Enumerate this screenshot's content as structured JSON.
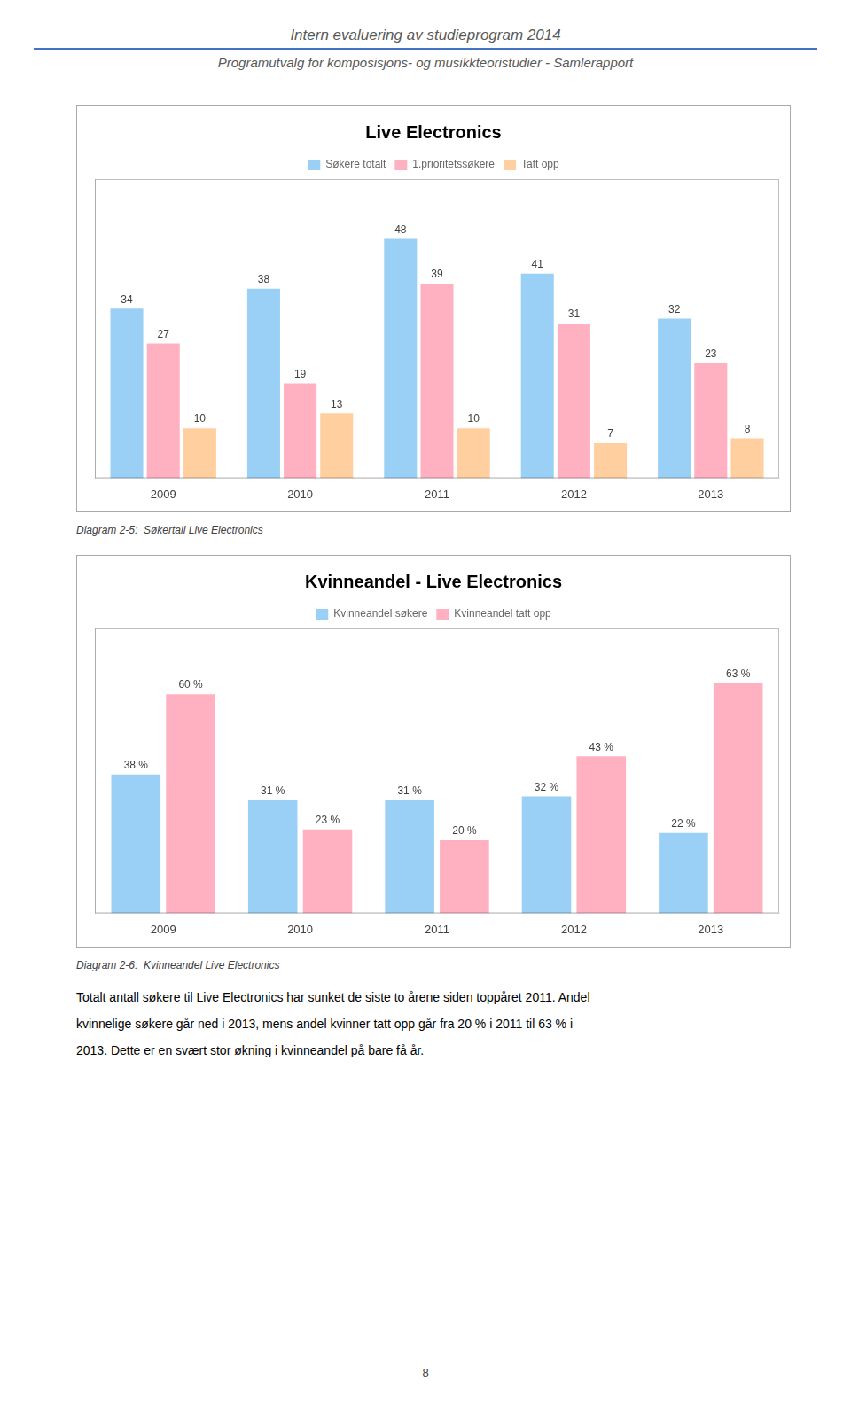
{
  "title": "Intern evaluering av studieprogram 2014",
  "subtitle": "Programutvalg for komposisjons- og musikkteoristudier - Samlerapport",
  "annotations": [
    "Totalt antall søkere til Live Electronics har sunket de siste to årene siden toppåret 2011. Andel",
    "kvinnelige søkere går ned i 2013, mens andel kvinner tatt opp går fra 20 % i 2011 til 63 % i",
    "2013. Dette er en svært stor økning i kvinneandel på bare få år.",
    "8"
  ],
  "chart_data": [
    {
      "type": "bar",
      "title": "Live Electronics",
      "categories": [
        "2009",
        "2010",
        "2011",
        "2012",
        "2013"
      ],
      "series": [
        {
          "name": "Søkere totalt",
          "values": [
            34,
            38,
            48,
            41,
            32
          ]
        },
        {
          "name": "1.prioritetssøkere",
          "values": [
            27,
            19,
            39,
            31,
            23
          ]
        },
        {
          "name": "Tatt opp",
          "values": [
            10,
            13,
            10,
            7,
            8
          ]
        }
      ],
      "ylim": [
        0,
        60
      ],
      "grid": false,
      "legend": "top",
      "data_labels": true,
      "tick_labels": "x",
      "annotations": [
        "Diagram 2-5:  Søkertall Live Electronics"
      ]
    },
    {
      "type": "bar",
      "title": "Kvinneandel - Live Electronics",
      "categories": [
        "2009",
        "2010",
        "2011",
        "2012",
        "2013"
      ],
      "series": [
        {
          "name": "Kvinneandel søkere",
          "values": [
            38,
            31,
            31,
            32,
            22
          ],
          "value_labels": [
            "38 %",
            "31 %",
            "31 %",
            "32 %",
            "22 %"
          ]
        },
        {
          "name": "Kvinneandel tatt opp",
          "values": [
            60,
            23,
            20,
            43,
            63
          ],
          "value_labels": [
            "60 %",
            "23 %",
            "20 %",
            "43 %",
            "63 %"
          ]
        }
      ],
      "ylim": [
        0,
        78
      ],
      "grid": false,
      "legend": "top",
      "data_labels": true,
      "tick_labels": "x",
      "annotations": [
        "Diagram 2-6:  Kvinneandel Live Electronics"
      ]
    }
  ]
}
